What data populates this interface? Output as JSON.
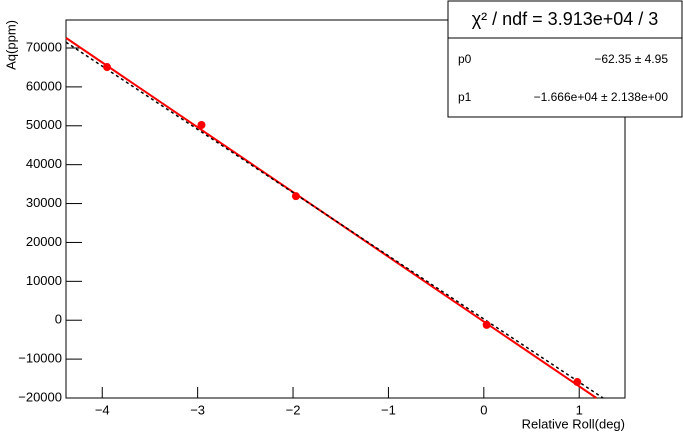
{
  "chart_data": {
    "type": "scatter",
    "x_label": "Relative Roll(deg)",
    "y_label": "Aq(ppm)",
    "x": [
      -3.95,
      -2.96,
      -1.97,
      0.03,
      0.98
    ],
    "values": [
      65100,
      50200,
      31900,
      -1200,
      -15900
    ],
    "color": "#ff0000",
    "lines": [
      {
        "x": [
          -4.38,
          1.18
        ],
        "values": [
          72600,
          -20000
        ],
        "color": "#ff0000",
        "style": "solid"
      },
      {
        "x": [
          -4.38,
          1.25
        ],
        "values": [
          71500,
          -20000
        ],
        "color": "#000000",
        "style": "dotted"
      }
    ],
    "xlim": [
      -4.38,
      1.48
    ],
    "ylim": [
      -20000,
      77200
    ],
    "xticks": [
      {
        "value": -4,
        "label": "−4"
      },
      {
        "value": -3,
        "label": "−3"
      },
      {
        "value": -2,
        "label": "−2"
      },
      {
        "value": -1,
        "label": "−1"
      },
      0,
      1
    ],
    "yticks": [
      {
        "value": -20000,
        "label": "−20000"
      },
      {
        "value": -10000,
        "label": "−10000"
      },
      0,
      10000,
      20000,
      30000,
      40000,
      50000,
      60000,
      70000
    ],
    "stats": {
      "title": "χ² / ndf = 3.913e+04 / 3",
      "rows": [
        {
          "name": "p0",
          "value": "−62.35 ± 4.95"
        },
        {
          "name": "p1",
          "value": "−1.666e+04 ± 2.138e+00"
        }
      ]
    }
  }
}
